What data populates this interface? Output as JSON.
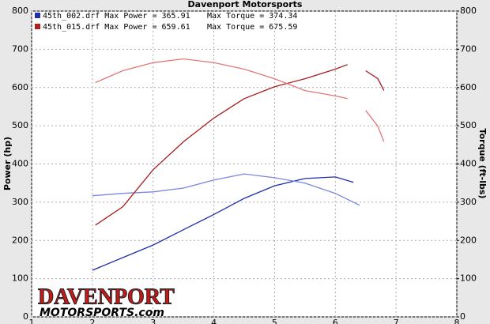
{
  "chart_data": {
    "type": "line",
    "title": "Davenport Motorsports",
    "legend": [
      {
        "file": "45th_002.drf Max Power = 365.91",
        "torque": "Max Torque = 374.34",
        "color": "#1f2fb0"
      },
      {
        "file": "45th_015.drf Max Power = 659.61",
        "torque": "Max Torque = 675.59",
        "color": "#b02020"
      }
    ],
    "ylabel": "Power (hp)",
    "y2label": "Torque (ft-lbs)",
    "logo": {
      "brand": "DAVENPORT",
      "site": "MOTORSPORTS.com"
    },
    "xlim": [
      1,
      8
    ],
    "xticks": [
      1,
      2,
      3,
      4,
      5,
      6,
      7,
      8
    ],
    "ylim": [
      0,
      800
    ],
    "yticks": [
      0,
      100,
      200,
      300,
      400,
      500,
      600,
      700,
      800
    ],
    "y2lim": [
      0,
      800
    ],
    "y2ticks": [
      0,
      100,
      200,
      300,
      400,
      500,
      600,
      700,
      800
    ],
    "grid": true,
    "series": [
      {
        "color": "#1f2fa8",
        "x": [
          2.0,
          2.5,
          3.0,
          3.5,
          4.0,
          4.5,
          5.0,
          5.5,
          6.0,
          6.3
        ],
        "values": [
          122,
          155,
          188,
          228,
          268,
          310,
          343,
          362,
          366,
          352
        ]
      },
      {
        "color": "#7a86e0",
        "axis": "y2",
        "x": [
          2.0,
          2.5,
          3.0,
          3.5,
          4.0,
          4.5,
          5.0,
          5.5,
          6.0,
          6.4
        ],
        "values": [
          317,
          323,
          327,
          337,
          358,
          374,
          364,
          350,
          323,
          292
        ]
      },
      {
        "color": "#a81c1c",
        "x": [
          2.05,
          2.5,
          3.0,
          3.5,
          4.0,
          4.5,
          5.0,
          5.5,
          6.0,
          6.2,
          6.35,
          6.5,
          6.7,
          6.8
        ],
        "values": [
          240,
          288,
          385,
          458,
          520,
          571,
          602,
          623,
          648,
          660,
          null,
          644,
          623,
          592
        ]
      },
      {
        "color": "#e07878",
        "axis": "y2",
        "x": [
          2.05,
          2.5,
          3.0,
          3.5,
          4.0,
          4.5,
          5.0,
          5.5,
          6.0,
          6.2,
          6.35,
          6.5,
          6.7,
          6.8
        ],
        "values": [
          613,
          644,
          665,
          675,
          665,
          648,
          623,
          592,
          578,
          571,
          null,
          540,
          499,
          458
        ]
      }
    ]
  }
}
